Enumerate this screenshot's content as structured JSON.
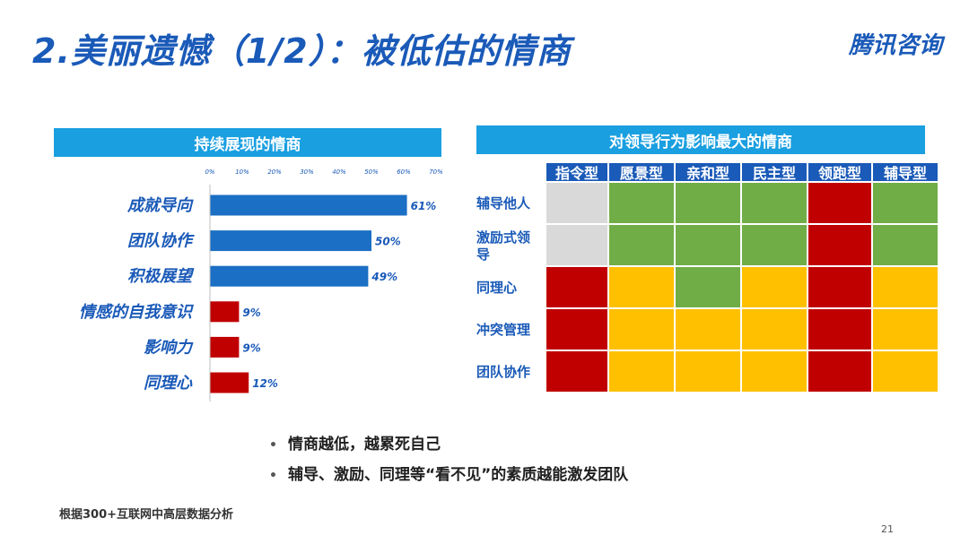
{
  "slide": {
    "title": "2.美丽遗憾（1/2）：被低估的情商",
    "brand": "腾讯咨询",
    "left_header": "持续展现的情商",
    "right_header": "对领导行为影响最大的情商",
    "bullets": [
      "情商越低，越累死自己",
      "辅导、激励、同理等“看不见”的素质越能激发团队"
    ],
    "source": "根据300+互联网中高层数据分析",
    "page_number": "21",
    "colors": {
      "title": "#1a5ab8",
      "header": "#1a9fe0",
      "bar_high": "#1b6fc4",
      "bar_low": "#c00000",
      "cell_gray": "#d9d9d9",
      "cell_green": "#70ad47",
      "cell_red": "#c00000",
      "cell_yellow": "#ffc000"
    }
  },
  "chart_data": [
    {
      "type": "bar",
      "orientation": "horizontal",
      "categories": [
        "成就导向",
        "团队协作",
        "积极展望",
        "情感的自我意识",
        "影响力",
        "同理心"
      ],
      "values": [
        61,
        50,
        49,
        9,
        9,
        12
      ],
      "value_labels": [
        "61%",
        "50%",
        "49%",
        "9%",
        "9%",
        "12%"
      ],
      "ticks": [
        "0%",
        "10%",
        "20%",
        "30%",
        "40%",
        "50%",
        "60%",
        "70%"
      ],
      "xlim": [
        0,
        70
      ],
      "title": "持续展现的情商",
      "grid": false
    },
    {
      "type": "heatmap",
      "title": "对领导行为影响最大的情商",
      "columns": [
        "指令型",
        "愿景型",
        "亲和型",
        "民主型",
        "领跑型",
        "辅导型"
      ],
      "rows": [
        "辅导他人",
        "激励式领导",
        "同理心",
        "冲突管理",
        "团队协作"
      ],
      "cells": [
        [
          "gray",
          "green",
          "green",
          "green",
          "red",
          "green"
        ],
        [
          "gray",
          "green",
          "green",
          "green",
          "red",
          "green"
        ],
        [
          "red",
          "yellow",
          "green",
          "yellow",
          "red",
          "yellow"
        ],
        [
          "red",
          "yellow",
          "yellow",
          "yellow",
          "red",
          "yellow"
        ],
        [
          "red",
          "yellow",
          "yellow",
          "yellow",
          "red",
          "yellow"
        ]
      ]
    }
  ]
}
